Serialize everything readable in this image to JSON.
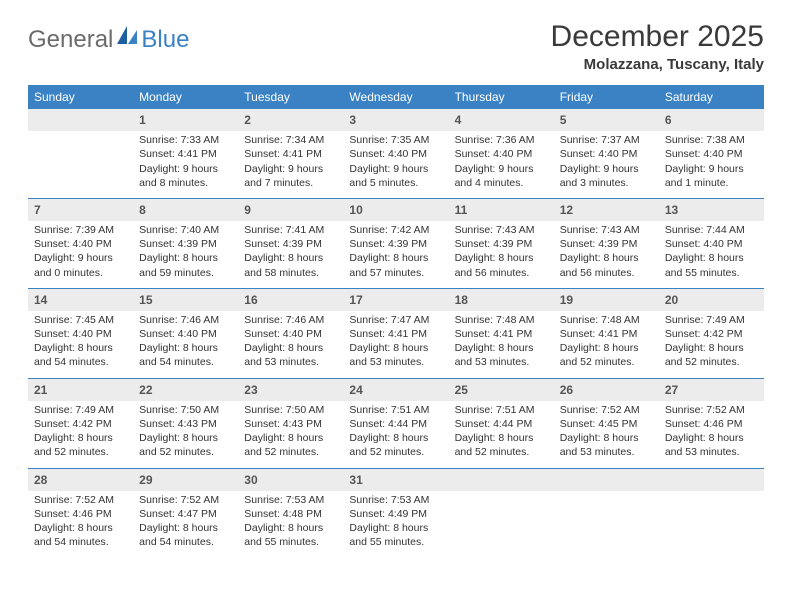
{
  "logo": {
    "text1": "General",
    "text2": "Blue"
  },
  "title": "December 2025",
  "location": "Molazzana, Tuscany, Italy",
  "colors": {
    "header_bg": "#3b82c4",
    "header_text": "#ffffff",
    "daynum_bg": "#ececec",
    "border": "#3b82c4",
    "text": "#333333",
    "logo_gray": "#6b6b6b",
    "logo_blue": "#3b82c4"
  },
  "weekdays": [
    "Sunday",
    "Monday",
    "Tuesday",
    "Wednesday",
    "Thursday",
    "Friday",
    "Saturday"
  ],
  "weeks": [
    [
      {
        "day": "",
        "sunrise": "",
        "sunset": "",
        "daylight": ""
      },
      {
        "day": "1",
        "sunrise": "Sunrise: 7:33 AM",
        "sunset": "Sunset: 4:41 PM",
        "daylight": "Daylight: 9 hours and 8 minutes."
      },
      {
        "day": "2",
        "sunrise": "Sunrise: 7:34 AM",
        "sunset": "Sunset: 4:41 PM",
        "daylight": "Daylight: 9 hours and 7 minutes."
      },
      {
        "day": "3",
        "sunrise": "Sunrise: 7:35 AM",
        "sunset": "Sunset: 4:40 PM",
        "daylight": "Daylight: 9 hours and 5 minutes."
      },
      {
        "day": "4",
        "sunrise": "Sunrise: 7:36 AM",
        "sunset": "Sunset: 4:40 PM",
        "daylight": "Daylight: 9 hours and 4 minutes."
      },
      {
        "day": "5",
        "sunrise": "Sunrise: 7:37 AM",
        "sunset": "Sunset: 4:40 PM",
        "daylight": "Daylight: 9 hours and 3 minutes."
      },
      {
        "day": "6",
        "sunrise": "Sunrise: 7:38 AM",
        "sunset": "Sunset: 4:40 PM",
        "daylight": "Daylight: 9 hours and 1 minute."
      }
    ],
    [
      {
        "day": "7",
        "sunrise": "Sunrise: 7:39 AM",
        "sunset": "Sunset: 4:40 PM",
        "daylight": "Daylight: 9 hours and 0 minutes."
      },
      {
        "day": "8",
        "sunrise": "Sunrise: 7:40 AM",
        "sunset": "Sunset: 4:39 PM",
        "daylight": "Daylight: 8 hours and 59 minutes."
      },
      {
        "day": "9",
        "sunrise": "Sunrise: 7:41 AM",
        "sunset": "Sunset: 4:39 PM",
        "daylight": "Daylight: 8 hours and 58 minutes."
      },
      {
        "day": "10",
        "sunrise": "Sunrise: 7:42 AM",
        "sunset": "Sunset: 4:39 PM",
        "daylight": "Daylight: 8 hours and 57 minutes."
      },
      {
        "day": "11",
        "sunrise": "Sunrise: 7:43 AM",
        "sunset": "Sunset: 4:39 PM",
        "daylight": "Daylight: 8 hours and 56 minutes."
      },
      {
        "day": "12",
        "sunrise": "Sunrise: 7:43 AM",
        "sunset": "Sunset: 4:39 PM",
        "daylight": "Daylight: 8 hours and 56 minutes."
      },
      {
        "day": "13",
        "sunrise": "Sunrise: 7:44 AM",
        "sunset": "Sunset: 4:40 PM",
        "daylight": "Daylight: 8 hours and 55 minutes."
      }
    ],
    [
      {
        "day": "14",
        "sunrise": "Sunrise: 7:45 AM",
        "sunset": "Sunset: 4:40 PM",
        "daylight": "Daylight: 8 hours and 54 minutes."
      },
      {
        "day": "15",
        "sunrise": "Sunrise: 7:46 AM",
        "sunset": "Sunset: 4:40 PM",
        "daylight": "Daylight: 8 hours and 54 minutes."
      },
      {
        "day": "16",
        "sunrise": "Sunrise: 7:46 AM",
        "sunset": "Sunset: 4:40 PM",
        "daylight": "Daylight: 8 hours and 53 minutes."
      },
      {
        "day": "17",
        "sunrise": "Sunrise: 7:47 AM",
        "sunset": "Sunset: 4:41 PM",
        "daylight": "Daylight: 8 hours and 53 minutes."
      },
      {
        "day": "18",
        "sunrise": "Sunrise: 7:48 AM",
        "sunset": "Sunset: 4:41 PM",
        "daylight": "Daylight: 8 hours and 53 minutes."
      },
      {
        "day": "19",
        "sunrise": "Sunrise: 7:48 AM",
        "sunset": "Sunset: 4:41 PM",
        "daylight": "Daylight: 8 hours and 52 minutes."
      },
      {
        "day": "20",
        "sunrise": "Sunrise: 7:49 AM",
        "sunset": "Sunset: 4:42 PM",
        "daylight": "Daylight: 8 hours and 52 minutes."
      }
    ],
    [
      {
        "day": "21",
        "sunrise": "Sunrise: 7:49 AM",
        "sunset": "Sunset: 4:42 PM",
        "daylight": "Daylight: 8 hours and 52 minutes."
      },
      {
        "day": "22",
        "sunrise": "Sunrise: 7:50 AM",
        "sunset": "Sunset: 4:43 PM",
        "daylight": "Daylight: 8 hours and 52 minutes."
      },
      {
        "day": "23",
        "sunrise": "Sunrise: 7:50 AM",
        "sunset": "Sunset: 4:43 PM",
        "daylight": "Daylight: 8 hours and 52 minutes."
      },
      {
        "day": "24",
        "sunrise": "Sunrise: 7:51 AM",
        "sunset": "Sunset: 4:44 PM",
        "daylight": "Daylight: 8 hours and 52 minutes."
      },
      {
        "day": "25",
        "sunrise": "Sunrise: 7:51 AM",
        "sunset": "Sunset: 4:44 PM",
        "daylight": "Daylight: 8 hours and 52 minutes."
      },
      {
        "day": "26",
        "sunrise": "Sunrise: 7:52 AM",
        "sunset": "Sunset: 4:45 PM",
        "daylight": "Daylight: 8 hours and 53 minutes."
      },
      {
        "day": "27",
        "sunrise": "Sunrise: 7:52 AM",
        "sunset": "Sunset: 4:46 PM",
        "daylight": "Daylight: 8 hours and 53 minutes."
      }
    ],
    [
      {
        "day": "28",
        "sunrise": "Sunrise: 7:52 AM",
        "sunset": "Sunset: 4:46 PM",
        "daylight": "Daylight: 8 hours and 54 minutes."
      },
      {
        "day": "29",
        "sunrise": "Sunrise: 7:52 AM",
        "sunset": "Sunset: 4:47 PM",
        "daylight": "Daylight: 8 hours and 54 minutes."
      },
      {
        "day": "30",
        "sunrise": "Sunrise: 7:53 AM",
        "sunset": "Sunset: 4:48 PM",
        "daylight": "Daylight: 8 hours and 55 minutes."
      },
      {
        "day": "31",
        "sunrise": "Sunrise: 7:53 AM",
        "sunset": "Sunset: 4:49 PM",
        "daylight": "Daylight: 8 hours and 55 minutes."
      },
      {
        "day": "",
        "sunrise": "",
        "sunset": "",
        "daylight": ""
      },
      {
        "day": "",
        "sunrise": "",
        "sunset": "",
        "daylight": ""
      },
      {
        "day": "",
        "sunrise": "",
        "sunset": "",
        "daylight": ""
      }
    ]
  ]
}
